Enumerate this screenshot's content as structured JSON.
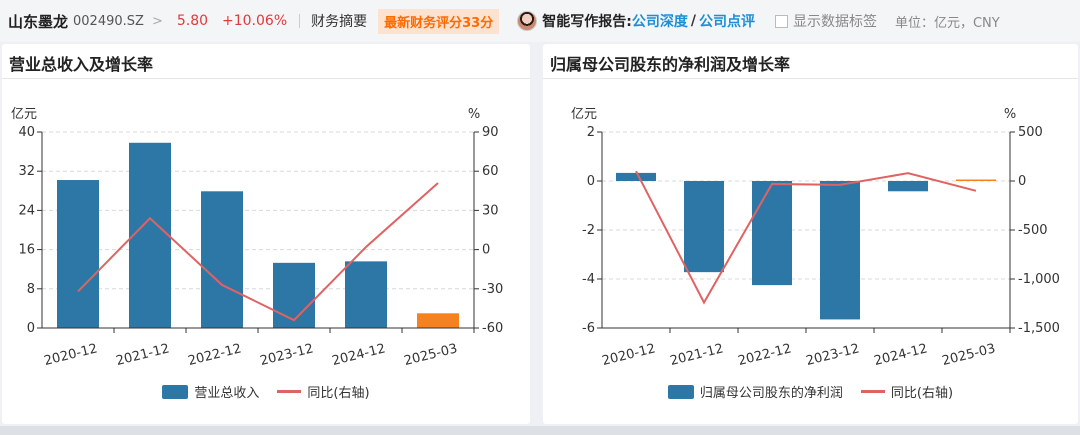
{
  "header": {
    "stock_name": "山东墨龙",
    "stock_code": "002490.SZ",
    "price": "5.80",
    "change": "+10.06%",
    "fin_summary": "财务摘要",
    "score_badge": "最新财务评分33分",
    "report_label": "智能写作报告:",
    "report_link_1": "公司深度",
    "report_separator": "/",
    "report_link_2": "公司点评",
    "show_labels": "显示数据标签",
    "unit": "单位：亿元，CNY"
  },
  "colors": {
    "bar": "#2d77a6",
    "bar_latest": "#f5821f",
    "line": "#e06363",
    "price_up": "#e03a3a",
    "link": "#1d8fd6",
    "badge_text": "#ff6a00"
  },
  "icons": {
    "chevron": "chevron-right-icon",
    "avatar": "avatar-icon",
    "checkbox": "checkbox-icon"
  },
  "chart_data": [
    {
      "type": "bar",
      "title": "营业总收入及增长率",
      "categories": [
        "2020-12",
        "2021-12",
        "2022-12",
        "2023-12",
        "2024-12",
        "2025-03"
      ],
      "left_axis": {
        "unit": "亿元",
        "ticks": [
          0,
          8,
          16,
          24,
          32,
          40
        ],
        "range": [
          0,
          40
        ]
      },
      "right_axis": {
        "unit": "%",
        "ticks": [
          -60,
          -30,
          0,
          30,
          60,
          90
        ],
        "range": [
          -60,
          90
        ]
      },
      "series": [
        {
          "name": "营业总收入",
          "kind": "bar",
          "axis": "left",
          "values": [
            30.2,
            37.8,
            27.9,
            13.3,
            13.6,
            3.0
          ],
          "highlight_last": true
        },
        {
          "name": "同比(右轴)",
          "kind": "line",
          "axis": "right",
          "values": [
            -32,
            24,
            -27,
            -54,
            2,
            51
          ]
        }
      ],
      "grid": true,
      "legend_position": "bottom-center"
    },
    {
      "type": "bar",
      "title": "归属母公司股东的净利润及增长率",
      "categories": [
        "2020-12",
        "2021-12",
        "2022-12",
        "2023-12",
        "2024-12",
        "2025-03"
      ],
      "left_axis": {
        "unit": "亿元",
        "ticks": [
          -6,
          -4,
          -2,
          0,
          2
        ],
        "range": [
          -6,
          2
        ]
      },
      "right_axis": {
        "unit": "%",
        "ticks": [
          -1500,
          -1000,
          -500,
          0,
          500
        ],
        "range": [
          -1500,
          500
        ],
        "tick_labels": [
          "-1,500",
          "-1,000",
          "-500",
          "0",
          "500"
        ]
      },
      "series": [
        {
          "name": "归属母公司股东的净利润",
          "kind": "bar",
          "axis": "left",
          "values": [
            0.33,
            -3.72,
            -4.25,
            -5.65,
            -0.42,
            0.05
          ],
          "highlight_last": true
        },
        {
          "name": "同比(右轴)",
          "kind": "line",
          "axis": "right",
          "values": [
            100,
            -1240,
            -30,
            -40,
            80,
            -100
          ]
        }
      ],
      "grid": true,
      "legend_position": "bottom-center"
    }
  ]
}
